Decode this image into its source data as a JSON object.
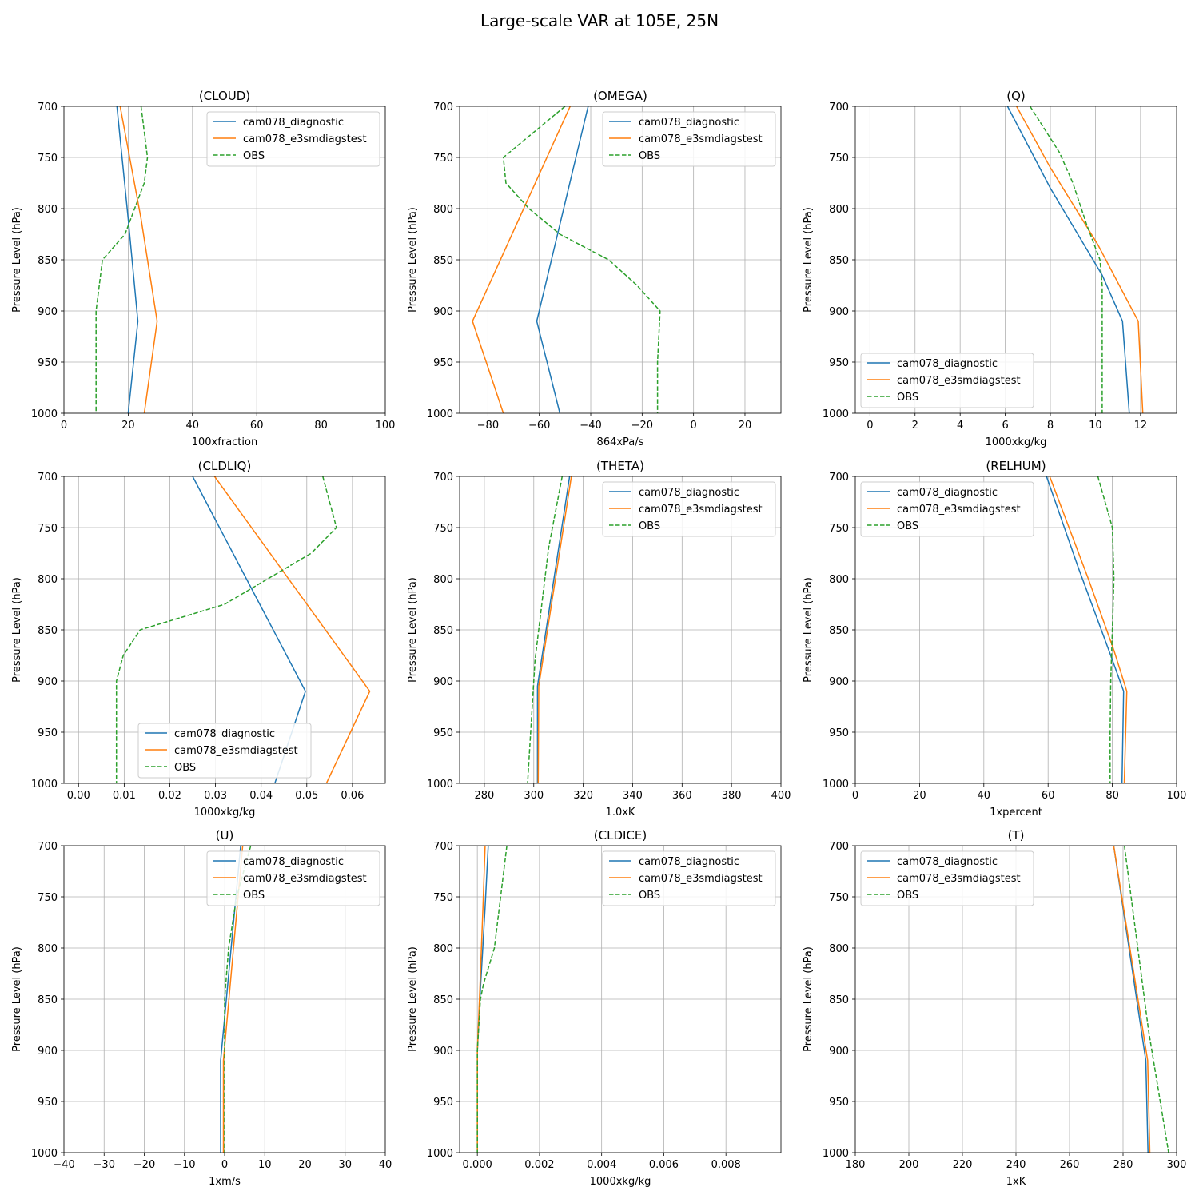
{
  "figure": {
    "title": "Large-scale VAR at 105E, 25N"
  },
  "chart_data": [
    {
      "type": "line",
      "title": "(CLOUD)",
      "xlabel": "100xfraction",
      "ylabel": "Pressure Level (hPa)",
      "xlim": [
        0,
        100
      ],
      "ylim": [
        1000,
        700
      ],
      "xticks": [
        0,
        20,
        40,
        60,
        80,
        100
      ],
      "xtick_labels": [
        "0",
        "20",
        "40",
        "60",
        "80",
        "100"
      ],
      "yticks": [
        700,
        750,
        800,
        850,
        900,
        950,
        1000
      ],
      "grid": true,
      "legend_loc": "upper right",
      "series": [
        {
          "name": "cam078_diagnostic",
          "color": "#1f77b4",
          "dash": false,
          "x": [
            16.5,
            20,
            23,
            20
          ],
          "y": [
            700,
            810,
            910,
            1000
          ]
        },
        {
          "name": "cam078_e3smdiagstest",
          "color": "#ff7f0e",
          "dash": false,
          "x": [
            17.5,
            24,
            29,
            25
          ],
          "y": [
            700,
            810,
            910,
            1000
          ]
        },
        {
          "name": "OBS",
          "color": "#2ca02c",
          "dash": true,
          "x": [
            24,
            26,
            25,
            22,
            19,
            12,
            10,
            10,
            10
          ],
          "y": [
            700,
            750,
            775,
            800,
            825,
            850,
            900,
            950,
            1000
          ]
        }
      ]
    },
    {
      "type": "line",
      "title": "(OMEGA)",
      "xlabel": "864xPa/s",
      "ylabel": "Pressure Level (hPa)",
      "xlim": [
        -91,
        34
      ],
      "ylim": [
        1000,
        700
      ],
      "xticks": [
        -80,
        -60,
        -40,
        -20,
        0,
        20
      ],
      "xtick_labels": [
        "−80",
        "−60",
        "−40",
        "−20",
        "0",
        "20"
      ],
      "yticks": [
        700,
        750,
        800,
        850,
        900,
        950,
        1000
      ],
      "grid": true,
      "legend_loc": "upper right",
      "series": [
        {
          "name": "cam078_diagnostic",
          "color": "#1f77b4",
          "dash": false,
          "x": [
            -41,
            -61,
            -52
          ],
          "y": [
            700,
            910,
            1000
          ]
        },
        {
          "name": "cam078_e3smdiagstest",
          "color": "#ff7f0e",
          "dash": false,
          "x": [
            -48,
            -86,
            -74
          ],
          "y": [
            700,
            910,
            1000
          ]
        },
        {
          "name": "OBS",
          "color": "#2ca02c",
          "dash": true,
          "x": [
            -50,
            -74,
            -73,
            -64,
            -52,
            -33,
            -22,
            -13,
            -14,
            -14
          ],
          "y": [
            700,
            750,
            775,
            800,
            825,
            850,
            875,
            900,
            950,
            1000
          ]
        }
      ]
    },
    {
      "type": "line",
      "title": "(Q)",
      "xlabel": "1000xkg/kg",
      "ylabel": "Pressure Level (hPa)",
      "xlim": [
        -0.65,
        13.6
      ],
      "ylim": [
        1000,
        700
      ],
      "xticks": [
        0,
        2,
        4,
        6,
        8,
        10,
        12
      ],
      "xtick_labels": [
        "0",
        "2",
        "4",
        "6",
        "8",
        "10",
        "12"
      ],
      "yticks": [
        700,
        750,
        800,
        850,
        900,
        950,
        1000
      ],
      "grid": true,
      "legend_loc": "lower left",
      "series": [
        {
          "name": "cam078_diagnostic",
          "color": "#1f77b4",
          "dash": false,
          "x": [
            6.1,
            8.0,
            10.3,
            11.2,
            11.5
          ],
          "y": [
            700,
            780,
            865,
            910,
            1000
          ]
        },
        {
          "name": "cam078_e3smdiagstest",
          "color": "#ff7f0e",
          "dash": false,
          "x": [
            6.5,
            8.0,
            10.1,
            11.9,
            12.1
          ],
          "y": [
            700,
            760,
            835,
            910,
            1000
          ]
        },
        {
          "name": "OBS",
          "color": "#2ca02c",
          "dash": true,
          "x": [
            7.1,
            8.4,
            9.0,
            9.6,
            10.2,
            10.3,
            10.3,
            10.3
          ],
          "y": [
            700,
            745,
            775,
            815,
            850,
            875,
            950,
            1000
          ]
        }
      ]
    },
    {
      "type": "line",
      "title": "(CLDLIQ)",
      "xlabel": "1000xkg/kg",
      "ylabel": "Pressure Level (hPa)",
      "xlim": [
        -0.0032,
        0.0672
      ],
      "ylim": [
        1000,
        700
      ],
      "xticks": [
        0,
        0.01,
        0.02,
        0.03,
        0.04,
        0.05,
        0.06
      ],
      "xtick_labels": [
        "0.00",
        "0.01",
        "0.02",
        "0.03",
        "0.04",
        "0.05",
        "0.06"
      ],
      "yticks": [
        700,
        750,
        800,
        850,
        900,
        950,
        1000
      ],
      "grid": true,
      "legend_loc": "lower center",
      "series": [
        {
          "name": "cam078_diagnostic",
          "color": "#1f77b4",
          "dash": false,
          "x": [
            0.025,
            0.0497,
            0.043
          ],
          "y": [
            700,
            910,
            1000
          ]
        },
        {
          "name": "cam078_e3smdiagstest",
          "color": "#ff7f0e",
          "dash": false,
          "x": [
            0.0298,
            0.0638,
            0.0543
          ],
          "y": [
            700,
            910,
            1000
          ]
        },
        {
          "name": "OBS",
          "color": "#2ca02c",
          "dash": true,
          "x": [
            0.0535,
            0.0565,
            0.051,
            0.0415,
            0.032,
            0.0135,
            0.0098,
            0.0083,
            0.0083,
            0.0083
          ],
          "y": [
            700,
            750,
            775,
            800,
            825,
            850,
            875,
            900,
            950,
            1000
          ]
        }
      ]
    },
    {
      "type": "line",
      "title": "(THETA)",
      "xlabel": "1.0xK",
      "ylabel": "Pressure Level (hPa)",
      "xlim": [
        270,
        400
      ],
      "ylim": [
        1000,
        700
      ],
      "xticks": [
        280,
        300,
        320,
        340,
        360,
        380,
        400
      ],
      "xtick_labels": [
        "280",
        "300",
        "320",
        "340",
        "360",
        "380",
        "400"
      ],
      "yticks": [
        700,
        750,
        800,
        850,
        900,
        950,
        1000
      ],
      "grid": true,
      "legend_loc": "upper right",
      "series": [
        {
          "name": "cam078_diagnostic",
          "color": "#1f77b4",
          "dash": false,
          "x": [
            314.5,
            301.5,
            301.5
          ],
          "y": [
            700,
            905,
            1000
          ]
        },
        {
          "name": "cam078_e3smdiagstest",
          "color": "#ff7f0e",
          "dash": false,
          "x": [
            315.2,
            302.0,
            301.8
          ],
          "y": [
            700,
            905,
            1000
          ]
        },
        {
          "name": "OBS",
          "color": "#2ca02c",
          "dash": true,
          "x": [
            311.5,
            306.0,
            300.5,
            297.5
          ],
          "y": [
            700,
            770,
            880,
            1000
          ]
        }
      ]
    },
    {
      "type": "line",
      "title": "(RELHUM)",
      "xlabel": "1xpercent",
      "ylabel": "Pressure Level (hPa)",
      "xlim": [
        0,
        100
      ],
      "ylim": [
        1000,
        700
      ],
      "xticks": [
        0,
        20,
        40,
        60,
        80,
        100
      ],
      "xtick_labels": [
        "0",
        "20",
        "40",
        "60",
        "80",
        "100"
      ],
      "yticks": [
        700,
        750,
        800,
        850,
        900,
        950,
        1000
      ],
      "grid": true,
      "legend_loc": "upper left",
      "series": [
        {
          "name": "cam078_diagnostic",
          "color": "#1f77b4",
          "dash": false,
          "x": [
            59.5,
            69.5,
            79.5,
            83.5,
            83.0
          ],
          "y": [
            700,
            790,
            875,
            910,
            1000
          ]
        },
        {
          "name": "cam078_e3smdiagstest",
          "color": "#ff7f0e",
          "dash": false,
          "x": [
            60.5,
            72.5,
            80.5,
            84.5,
            83.7
          ],
          "y": [
            700,
            800,
            870,
            910,
            1000
          ]
        },
        {
          "name": "OBS",
          "color": "#2ca02c",
          "dash": true,
          "x": [
            75.5,
            80.0,
            80.5,
            80.0,
            79.5,
            79.3,
            79.3
          ],
          "y": [
            700,
            750,
            800,
            850,
            900,
            950,
            1000
          ]
        }
      ]
    },
    {
      "type": "line",
      "title": "(U)",
      "xlabel": "1xm/s",
      "ylabel": "Pressure Level (hPa)",
      "xlim": [
        -40,
        40
      ],
      "ylim": [
        1000,
        700
      ],
      "xticks": [
        -40,
        -30,
        -20,
        -10,
        0,
        10,
        20,
        30,
        40
      ],
      "xtick_labels": [
        "−40",
        "−30",
        "−20",
        "−10",
        "0",
        "10",
        "20",
        "30",
        "40"
      ],
      "yticks": [
        700,
        750,
        800,
        850,
        900,
        950,
        1000
      ],
      "grid": true,
      "legend_loc": "upper right",
      "series": [
        {
          "name": "cam078_diagnostic",
          "color": "#1f77b4",
          "dash": false,
          "x": [
            4.0,
            -1.0,
            -1.0
          ],
          "y": [
            700,
            910,
            1000
          ]
        },
        {
          "name": "cam078_e3smdiagstest",
          "color": "#ff7f0e",
          "dash": false,
          "x": [
            4.5,
            -0.3,
            -0.3
          ],
          "y": [
            700,
            910,
            1000
          ]
        },
        {
          "name": "OBS",
          "color": "#2ca02c",
          "dash": true,
          "x": [
            6.5,
            3.0,
            1.0,
            0.0,
            0.0,
            0.0
          ],
          "y": [
            700,
            750,
            800,
            850,
            900,
            1000
          ]
        }
      ]
    },
    {
      "type": "line",
      "title": "(CLDICE)",
      "xlabel": "1000xkg/kg",
      "ylabel": "Pressure Level (hPa)",
      "xlim": [
        -0.00057,
        0.00977
      ],
      "ylim": [
        1000,
        700
      ],
      "xticks": [
        0,
        0.002,
        0.004,
        0.006,
        0.008
      ],
      "xtick_labels": [
        "0.000",
        "0.002",
        "0.004",
        "0.006",
        "0.008"
      ],
      "yticks": [
        700,
        750,
        800,
        850,
        900,
        950,
        1000
      ],
      "grid": true,
      "legend_loc": "upper right",
      "series": [
        {
          "name": "cam078_diagnostic",
          "color": "#1f77b4",
          "dash": false,
          "x": [
            0.00035,
            0.00025,
            0.0001,
            0.0,
            0.0
          ],
          "y": [
            700,
            760,
            840,
            900,
            1000
          ]
        },
        {
          "name": "cam078_e3smdiagstest",
          "color": "#ff7f0e",
          "dash": false,
          "x": [
            0.00025,
            0.00018,
            8e-05,
            0.0,
            0.0
          ],
          "y": [
            700,
            760,
            840,
            900,
            1000
          ]
        },
        {
          "name": "OBS",
          "color": "#2ca02c",
          "dash": true,
          "x": [
            0.00095,
            0.00075,
            0.00065,
            0.00055,
            0.0002,
            0.0001,
            0.0,
            0.0
          ],
          "y": [
            700,
            750,
            775,
            800,
            835,
            850,
            900,
            1000
          ]
        }
      ]
    },
    {
      "type": "line",
      "title": "(T)",
      "xlabel": "1xK",
      "ylabel": "Pressure Level (hPa)",
      "xlim": [
        180,
        300
      ],
      "ylim": [
        1000,
        700
      ],
      "xticks": [
        180,
        200,
        220,
        240,
        260,
        280,
        300
      ],
      "xtick_labels": [
        "180",
        "200",
        "220",
        "240",
        "260",
        "280",
        "300"
      ],
      "yticks": [
        700,
        750,
        800,
        850,
        900,
        950,
        1000
      ],
      "grid": true,
      "legend_loc": "upper left",
      "series": [
        {
          "name": "cam078_diagnostic",
          "color": "#1f77b4",
          "dash": false,
          "x": [
            276.5,
            288.5,
            289.3
          ],
          "y": [
            700,
            910,
            1000
          ]
        },
        {
          "name": "cam078_e3smdiagstest",
          "color": "#ff7f0e",
          "dash": false,
          "x": [
            276.5,
            289.2,
            290.0
          ],
          "y": [
            700,
            910,
            1000
          ]
        },
        {
          "name": "OBS",
          "color": "#2ca02c",
          "dash": true,
          "x": [
            280.5,
            289.5,
            297.0
          ],
          "y": [
            700,
            880,
            1000
          ]
        }
      ]
    }
  ]
}
